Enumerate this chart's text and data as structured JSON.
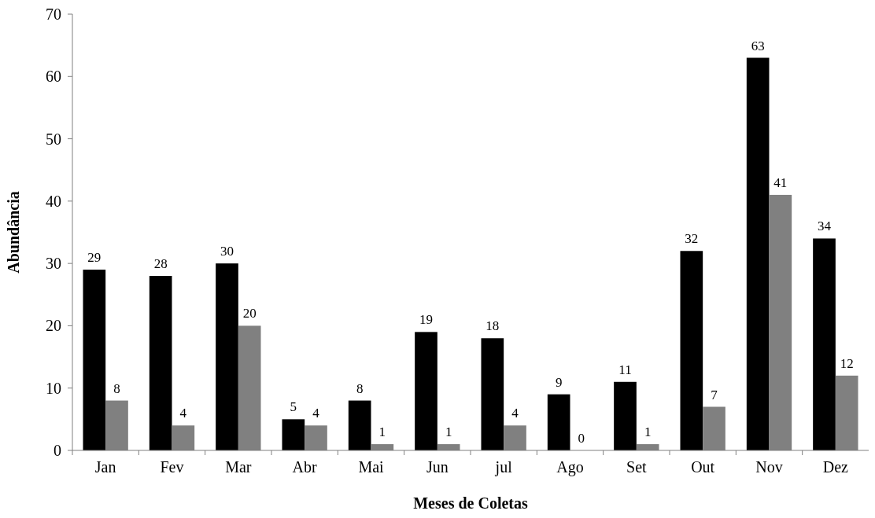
{
  "chart_data": {
    "type": "bar",
    "xlabel": "Meses de Coletas",
    "ylabel": "Abundância",
    "categories": [
      "Jan",
      "Fev",
      "Mar",
      "Abr",
      "Mai",
      "Jun",
      "jul",
      "Ago",
      "Set",
      "Out",
      "Nov",
      "Dez"
    ],
    "series": [
      {
        "color": "#000000",
        "values": [
          29,
          28,
          30,
          5,
          8,
          19,
          18,
          9,
          11,
          32,
          63,
          34
        ]
      },
      {
        "color": "#808080",
        "values": [
          8,
          4,
          20,
          4,
          1,
          1,
          4,
          0,
          1,
          7,
          41,
          12
        ]
      }
    ],
    "ylim": [
      0,
      70
    ],
    "yticks": [
      0,
      10,
      20,
      30,
      40,
      50,
      60,
      70
    ],
    "data_labels": true
  }
}
